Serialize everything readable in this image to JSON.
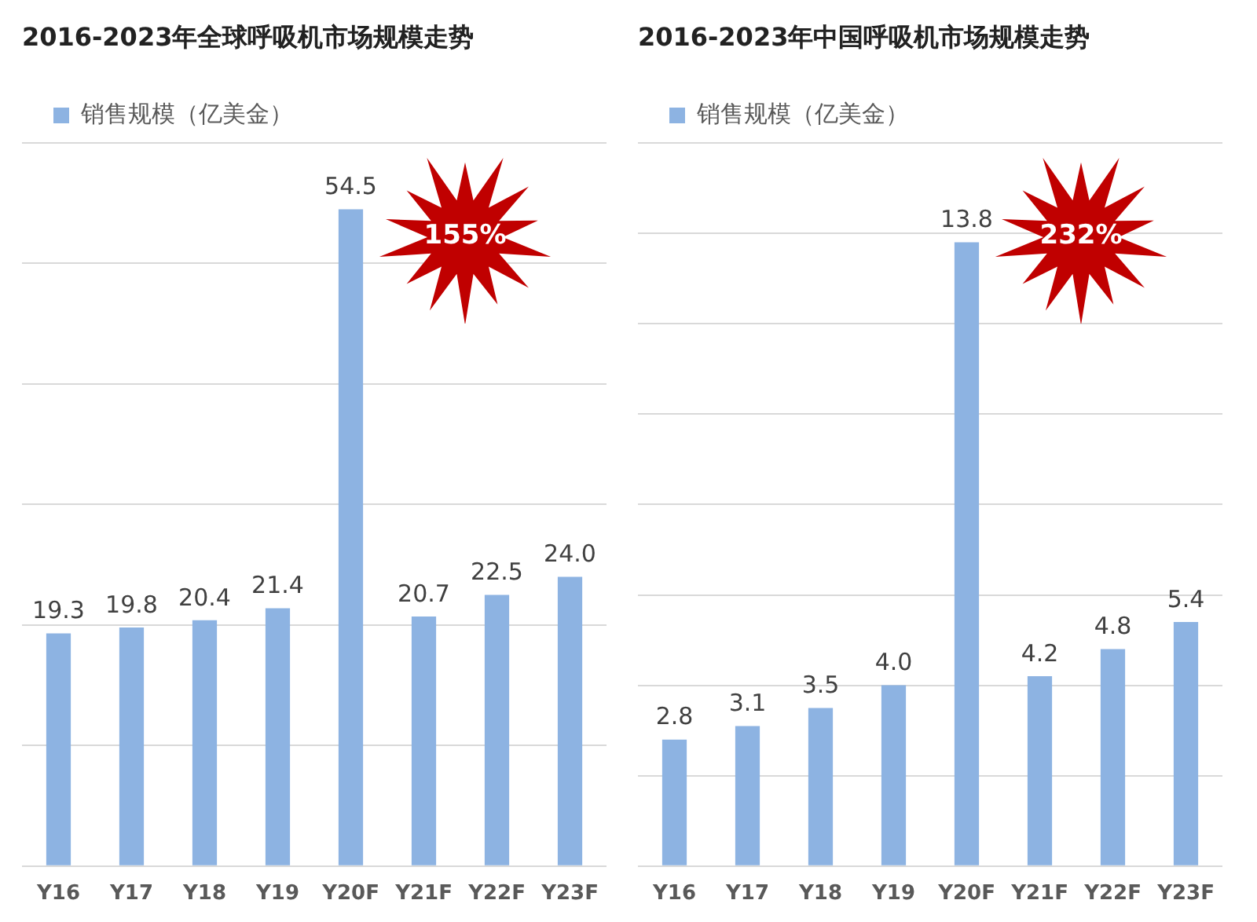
{
  "chart_data": [
    {
      "type": "bar",
      "title": "2016-2023年全球呼吸机市场规模走势",
      "categories": [
        "Y16",
        "Y17",
        "Y18",
        "Y19",
        "Y20F",
        "Y21F",
        "Y22F",
        "Y23F"
      ],
      "series": [
        {
          "name": "销售规模（亿美金）",
          "color": "#8db3e2",
          "values": [
            19.3,
            19.8,
            20.4,
            21.4,
            54.5,
            20.7,
            22.5,
            24.0
          ],
          "value_labels": [
            "19.3",
            "19.8",
            "20.4",
            "21.4",
            "54.5",
            "20.7",
            "22.5",
            "24.0"
          ]
        }
      ],
      "ylim": [
        0,
        60
      ],
      "yticks": [
        {
          "value": 0,
          "label": null
        },
        {
          "value": 10,
          "label": null
        },
        {
          "value": 20,
          "label": null
        },
        {
          "value": 30,
          "label": null
        },
        {
          "value": 40,
          "label": null
        },
        {
          "value": 50,
          "label": null
        },
        {
          "value": 60,
          "label": null
        }
      ],
      "grid": "y",
      "tick_labels": "x",
      "legend": "top left",
      "annotations": [
        "155%"
      ]
    },
    {
      "type": "bar",
      "title": "2016-2023年中国呼吸机市场规模走势",
      "categories": [
        "Y16",
        "Y17",
        "Y18",
        "Y19",
        "Y20F",
        "Y21F",
        "Y22F",
        "Y23F"
      ],
      "series": [
        {
          "name": "销售规模（亿美金）",
          "color": "#8db3e2",
          "values": [
            2.8,
            3.1,
            3.5,
            4.0,
            13.8,
            4.2,
            4.8,
            5.4
          ],
          "value_labels": [
            "2.8",
            "3.1",
            "3.5",
            "4.0",
            "13.8",
            "4.2",
            "4.8",
            "5.4"
          ]
        }
      ],
      "ylim": [
        0,
        16
      ],
      "yticks": [
        {
          "value": 0,
          "label": null
        },
        {
          "value": 2,
          "label": null
        },
        {
          "value": 4,
          "label": null
        },
        {
          "value": 6,
          "label": null
        },
        {
          "value": 8,
          "label": null
        },
        {
          "value": 10,
          "label": null
        },
        {
          "value": 12,
          "label": null
        },
        {
          "value": 14,
          "label": null
        },
        {
          "value": 16,
          "label": null
        }
      ],
      "grid": "y",
      "tick_labels": "x",
      "legend": "top left",
      "annotations": [
        "232%"
      ]
    }
  ]
}
